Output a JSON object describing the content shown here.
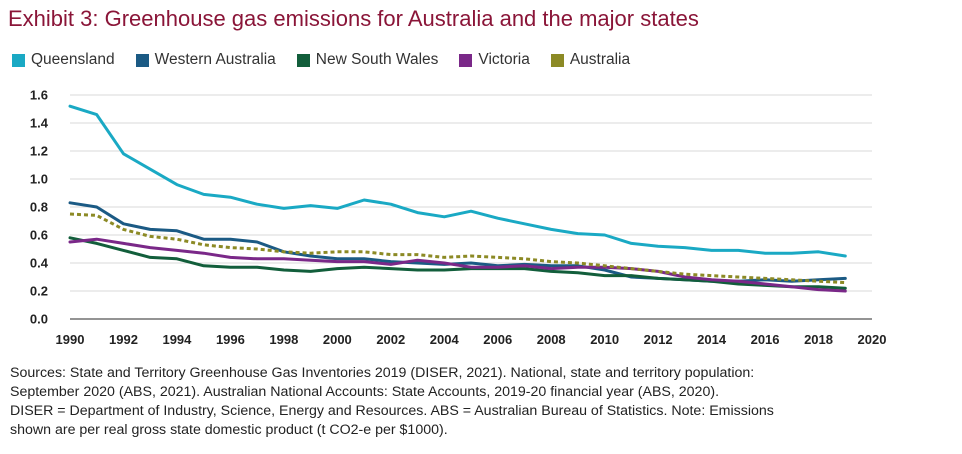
{
  "chart_data": {
    "type": "line",
    "title": "Exhibit 3: Greenhouse gas emissions for Australia and the major states",
    "xlabel": "",
    "ylabel": "",
    "xlim": [
      1990,
      2020
    ],
    "ylim": [
      0,
      1.6
    ],
    "x_ticks": [
      1990,
      1992,
      1994,
      1996,
      1998,
      2000,
      2002,
      2004,
      2006,
      2008,
      2010,
      2012,
      2014,
      2016,
      2018,
      2020
    ],
    "y_ticks": [
      0.0,
      0.2,
      0.4,
      0.6,
      0.8,
      1.0,
      1.2,
      1.4,
      1.6
    ],
    "y_tick_labels": [
      "0.0",
      "0.2",
      "0.4",
      "0.6",
      "0.8",
      "1.0",
      "1.2",
      "1.4",
      "1.6"
    ],
    "grid": "horizontal",
    "legend_position": "top-left",
    "x": [
      1990,
      1991,
      1992,
      1993,
      1994,
      1995,
      1996,
      1997,
      1998,
      1999,
      2000,
      2001,
      2002,
      2003,
      2004,
      2005,
      2006,
      2007,
      2008,
      2009,
      2010,
      2011,
      2012,
      2013,
      2014,
      2015,
      2016,
      2017,
      2018,
      2019
    ],
    "series": [
      {
        "name": "Queensland",
        "color": "#1aa9c4",
        "style": "solid",
        "values": [
          1.52,
          1.46,
          1.18,
          1.07,
          0.96,
          0.89,
          0.87,
          0.82,
          0.79,
          0.81,
          0.79,
          0.85,
          0.82,
          0.76,
          0.73,
          0.77,
          0.72,
          0.68,
          0.64,
          0.61,
          0.6,
          0.54,
          0.52,
          0.51,
          0.49,
          0.49,
          0.47,
          0.47,
          0.48,
          0.45
        ]
      },
      {
        "name": "Western Australia",
        "color": "#1b5a84",
        "style": "solid",
        "values": [
          0.83,
          0.8,
          0.68,
          0.64,
          0.63,
          0.57,
          0.57,
          0.55,
          0.48,
          0.45,
          0.43,
          0.43,
          0.41,
          0.4,
          0.39,
          0.4,
          0.38,
          0.39,
          0.38,
          0.38,
          0.35,
          0.3,
          0.29,
          0.28,
          0.27,
          0.27,
          0.28,
          0.27,
          0.28,
          0.29
        ]
      },
      {
        "name": "New South Wales",
        "color": "#125e3b",
        "style": "solid",
        "values": [
          0.58,
          0.54,
          0.49,
          0.44,
          0.43,
          0.38,
          0.37,
          0.37,
          0.35,
          0.34,
          0.36,
          0.37,
          0.36,
          0.35,
          0.35,
          0.36,
          0.36,
          0.36,
          0.34,
          0.33,
          0.31,
          0.31,
          0.29,
          0.28,
          0.27,
          0.25,
          0.24,
          0.23,
          0.23,
          0.22
        ]
      },
      {
        "name": "Victoria",
        "color": "#7a2888",
        "style": "solid",
        "values": [
          0.55,
          0.57,
          0.54,
          0.51,
          0.49,
          0.47,
          0.44,
          0.43,
          0.43,
          0.42,
          0.41,
          0.41,
          0.39,
          0.42,
          0.4,
          0.37,
          0.37,
          0.38,
          0.36,
          0.37,
          0.37,
          0.36,
          0.34,
          0.3,
          0.28,
          0.27,
          0.25,
          0.23,
          0.21,
          0.2
        ]
      },
      {
        "name": "Australia",
        "color": "#8c8a25",
        "style": "dotted",
        "values": [
          0.75,
          0.74,
          0.64,
          0.59,
          0.57,
          0.53,
          0.51,
          0.5,
          0.48,
          0.47,
          0.48,
          0.48,
          0.46,
          0.46,
          0.44,
          0.45,
          0.44,
          0.43,
          0.41,
          0.4,
          0.38,
          0.36,
          0.34,
          0.32,
          0.31,
          0.3,
          0.29,
          0.28,
          0.27,
          0.26
        ]
      }
    ]
  },
  "source_lines": [
    "Sources: State and Territory Greenhouse Gas Inventories 2019 (DISER, 2021). National, state and territory population:",
    "September 2020 (ABS, 2021). Australian National Accounts: State Accounts, 2019-20 financial year (ABS, 2020).",
    "DISER = Department of Industry, Science, Energy and Resources. ABS = Australian Bureau of Statistics. Note: Emissions",
    "shown are per real gross state domestic product (t CO2-e per $1000)."
  ]
}
